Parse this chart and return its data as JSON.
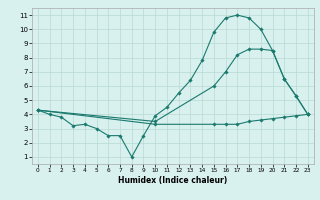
{
  "line1_x": [
    0,
    1,
    2,
    3,
    4,
    5,
    6,
    7,
    8,
    9,
    10,
    11,
    12,
    13,
    14,
    15,
    16,
    17,
    18,
    19,
    20,
    21,
    22,
    23
  ],
  "line1_y": [
    4.3,
    4.0,
    3.8,
    3.2,
    3.3,
    3.0,
    2.5,
    2.5,
    1.0,
    2.5,
    3.9,
    4.5,
    5.5,
    6.4,
    7.8,
    9.8,
    10.8,
    11.0,
    10.8,
    10.0,
    8.5,
    6.5,
    5.3,
    4.0
  ],
  "line2_x": [
    0,
    10,
    15,
    16,
    17,
    18,
    19,
    20,
    21,
    22,
    23
  ],
  "line2_y": [
    4.3,
    3.5,
    6.0,
    7.0,
    8.2,
    8.6,
    8.6,
    8.5,
    6.5,
    5.3,
    4.0
  ],
  "line3_x": [
    0,
    10,
    15,
    16,
    17,
    18,
    19,
    20,
    21,
    22,
    23
  ],
  "line3_y": [
    4.3,
    3.3,
    3.3,
    3.3,
    3.3,
    3.5,
    3.6,
    3.7,
    3.8,
    3.9,
    4.0
  ],
  "line_color": "#1a7a6e",
  "bg_color": "#d8f0ee",
  "grid_color": "#b8d8d4",
  "xlabel": "Humidex (Indice chaleur)",
  "xlim": [
    -0.5,
    23.5
  ],
  "ylim": [
    0.5,
    11.5
  ],
  "xticks": [
    0,
    1,
    2,
    3,
    4,
    5,
    6,
    7,
    8,
    9,
    10,
    11,
    12,
    13,
    14,
    15,
    16,
    17,
    18,
    19,
    20,
    21,
    22,
    23
  ],
  "yticks": [
    1,
    2,
    3,
    4,
    5,
    6,
    7,
    8,
    9,
    10,
    11
  ],
  "xlabel_fontsize": 5.5,
  "tick_fontsize": 5.0,
  "lw": 0.8,
  "ms": 1.8
}
